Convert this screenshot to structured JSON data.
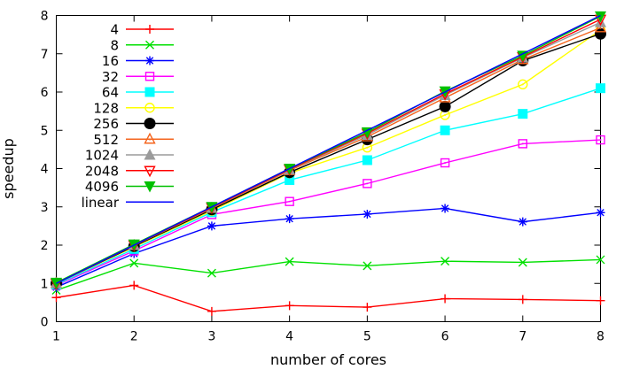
{
  "chart_data": {
    "type": "line",
    "title": "",
    "xlabel": "number of cores",
    "ylabel": "speedup",
    "x": [
      1,
      2,
      3,
      4,
      5,
      6,
      7,
      8
    ],
    "xlim": [
      1,
      8
    ],
    "ylim": [
      0,
      8
    ],
    "xticks": [
      1,
      2,
      3,
      4,
      5,
      6,
      7,
      8
    ],
    "yticks": [
      0,
      1,
      2,
      3,
      4,
      5,
      6,
      7,
      8
    ],
    "grid": false,
    "legend_position": "top-left-inside",
    "series": [
      {
        "name": "4",
        "color": "#ff0000",
        "marker": "plus",
        "values": [
          0.63,
          0.95,
          0.27,
          0.42,
          0.38,
          0.6,
          0.58,
          0.55
        ]
      },
      {
        "name": "8",
        "color": "#00e000",
        "marker": "cross",
        "values": [
          0.82,
          1.53,
          1.27,
          1.57,
          1.46,
          1.58,
          1.55,
          1.62
        ]
      },
      {
        "name": "16",
        "color": "#0000ff",
        "marker": "asterisk",
        "values": [
          0.9,
          1.78,
          2.5,
          2.69,
          2.81,
          2.96,
          2.61,
          2.85
        ]
      },
      {
        "name": "32",
        "color": "#ff00ff",
        "marker": "square-open",
        "values": [
          0.95,
          1.85,
          2.8,
          3.14,
          3.61,
          4.15,
          4.65,
          4.75
        ]
      },
      {
        "name": "64",
        "color": "#00ffff",
        "marker": "square-filled",
        "values": [
          0.97,
          1.9,
          2.86,
          3.7,
          4.22,
          5.0,
          5.43,
          6.1
        ]
      },
      {
        "name": "128",
        "color": "#ffff00",
        "marker": "circle-open",
        "values": [
          1.0,
          1.95,
          2.9,
          3.88,
          4.55,
          5.4,
          6.2,
          7.62
        ]
      },
      {
        "name": "256",
        "color": "#000000",
        "marker": "circle-filled",
        "values": [
          1.0,
          1.97,
          2.93,
          3.9,
          4.76,
          5.62,
          6.82,
          7.52
        ]
      },
      {
        "name": "512",
        "color": "#f4641d",
        "marker": "triangle-open",
        "values": [
          1.0,
          1.99,
          2.96,
          3.95,
          4.83,
          5.85,
          6.85,
          7.68
        ]
      },
      {
        "name": "1024",
        "color": "#9b9b9b",
        "marker": "triangle-filled",
        "values": [
          1.0,
          2.0,
          2.97,
          3.97,
          4.88,
          5.92,
          6.9,
          7.82
        ]
      },
      {
        "name": "2048",
        "color": "#ff0000",
        "marker": "tridown-open",
        "values": [
          1.0,
          2.0,
          2.98,
          3.98,
          4.92,
          5.95,
          6.92,
          7.9
        ]
      },
      {
        "name": "4096",
        "color": "#00c000",
        "marker": "tridown-filled",
        "values": [
          1.02,
          2.02,
          3.0,
          4.0,
          4.95,
          6.02,
          6.95,
          7.98
        ]
      },
      {
        "name": "linear",
        "color": "#0000ff",
        "marker": "none",
        "values": [
          1,
          2,
          3,
          4,
          5,
          6,
          7,
          8
        ]
      }
    ]
  },
  "colors": {
    "background": "#ffffff",
    "axis": "#000000",
    "text": "#000000"
  }
}
